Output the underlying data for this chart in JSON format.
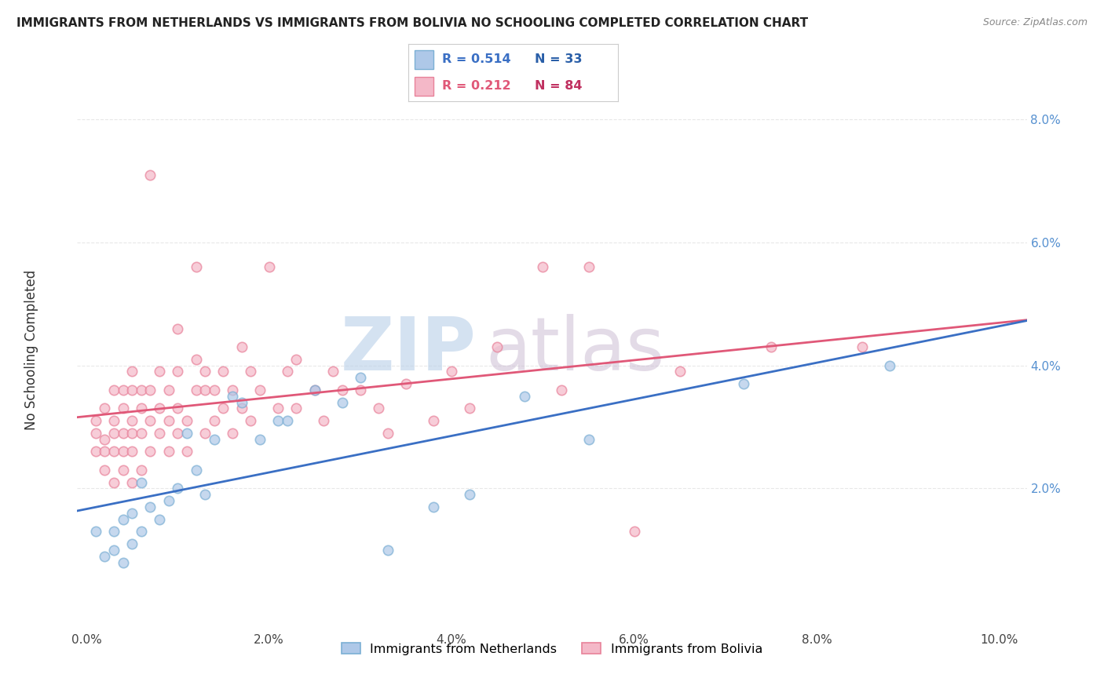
{
  "title": "IMMIGRANTS FROM NETHERLANDS VS IMMIGRANTS FROM BOLIVIA NO SCHOOLING COMPLETED CORRELATION CHART",
  "source": "Source: ZipAtlas.com",
  "ylabel": "No Schooling Completed",
  "xlim": [
    -0.001,
    0.103
  ],
  "ylim": [
    -0.003,
    0.088
  ],
  "netherlands_color": "#aec8e8",
  "bolivia_color": "#f4b8c8",
  "netherlands_edge_color": "#7bafd4",
  "bolivia_edge_color": "#e8829a",
  "netherlands_trend_color": "#3a6fc4",
  "bolivia_trend_color": "#e05878",
  "netherlands_R": 0.514,
  "netherlands_N": 33,
  "bolivia_R": 0.212,
  "bolivia_N": 84,
  "netherlands_label": "Immigrants from Netherlands",
  "bolivia_label": "Immigrants from Bolivia",
  "legend_R_nl_color": "#3a6fc4",
  "legend_N_nl_color": "#2a5fa8",
  "legend_R_bo_color": "#e05878",
  "legend_N_bo_color": "#c03060",
  "watermark_zip": "ZIP",
  "watermark_atlas": "atlas",
  "background_color": "#ffffff",
  "grid_color": "#e8e8e8",
  "x_ticks": [
    0.0,
    0.02,
    0.04,
    0.06,
    0.08,
    0.1
  ],
  "x_tick_labels": [
    "0.0%",
    "2.0%",
    "4.0%",
    "6.0%",
    "8.0%",
    "10.0%"
  ],
  "y_ticks": [
    0.02,
    0.04,
    0.06,
    0.08
  ],
  "y_tick_labels": [
    "2.0%",
    "4.0%",
    "6.0%",
    "8.0%"
  ],
  "netherlands_x": [
    0.001,
    0.002,
    0.003,
    0.003,
    0.004,
    0.004,
    0.005,
    0.005,
    0.006,
    0.006,
    0.007,
    0.008,
    0.009,
    0.01,
    0.011,
    0.012,
    0.013,
    0.014,
    0.016,
    0.017,
    0.019,
    0.021,
    0.022,
    0.025,
    0.028,
    0.03,
    0.033,
    0.038,
    0.042,
    0.048,
    0.055,
    0.072,
    0.088
  ],
  "netherlands_y": [
    0.013,
    0.009,
    0.01,
    0.013,
    0.008,
    0.015,
    0.011,
    0.016,
    0.013,
    0.021,
    0.017,
    0.015,
    0.018,
    0.02,
    0.029,
    0.023,
    0.019,
    0.028,
    0.035,
    0.034,
    0.028,
    0.031,
    0.031,
    0.036,
    0.034,
    0.038,
    0.01,
    0.017,
    0.019,
    0.035,
    0.028,
    0.037,
    0.04
  ],
  "bolivia_x": [
    0.001,
    0.001,
    0.001,
    0.002,
    0.002,
    0.002,
    0.002,
    0.003,
    0.003,
    0.003,
    0.003,
    0.003,
    0.004,
    0.004,
    0.004,
    0.004,
    0.004,
    0.005,
    0.005,
    0.005,
    0.005,
    0.005,
    0.005,
    0.006,
    0.006,
    0.006,
    0.006,
    0.007,
    0.007,
    0.007,
    0.007,
    0.008,
    0.008,
    0.008,
    0.009,
    0.009,
    0.009,
    0.01,
    0.01,
    0.01,
    0.01,
    0.011,
    0.011,
    0.012,
    0.012,
    0.012,
    0.013,
    0.013,
    0.013,
    0.014,
    0.014,
    0.015,
    0.015,
    0.016,
    0.016,
    0.017,
    0.017,
    0.018,
    0.018,
    0.019,
    0.02,
    0.021,
    0.022,
    0.023,
    0.023,
    0.025,
    0.026,
    0.027,
    0.028,
    0.03,
    0.032,
    0.033,
    0.035,
    0.038,
    0.04,
    0.042,
    0.045,
    0.05,
    0.052,
    0.055,
    0.06,
    0.065,
    0.075,
    0.085
  ],
  "bolivia_y": [
    0.026,
    0.029,
    0.031,
    0.023,
    0.026,
    0.028,
    0.033,
    0.021,
    0.026,
    0.029,
    0.031,
    0.036,
    0.023,
    0.026,
    0.029,
    0.033,
    0.036,
    0.021,
    0.026,
    0.029,
    0.031,
    0.036,
    0.039,
    0.023,
    0.029,
    0.033,
    0.036,
    0.026,
    0.031,
    0.036,
    0.071,
    0.029,
    0.033,
    0.039,
    0.026,
    0.031,
    0.036,
    0.029,
    0.033,
    0.039,
    0.046,
    0.026,
    0.031,
    0.036,
    0.041,
    0.056,
    0.029,
    0.036,
    0.039,
    0.031,
    0.036,
    0.033,
    0.039,
    0.029,
    0.036,
    0.033,
    0.043,
    0.031,
    0.039,
    0.036,
    0.056,
    0.033,
    0.039,
    0.033,
    0.041,
    0.036,
    0.031,
    0.039,
    0.036,
    0.036,
    0.033,
    0.029,
    0.037,
    0.031,
    0.039,
    0.033,
    0.043,
    0.056,
    0.036,
    0.056,
    0.013,
    0.039,
    0.043,
    0.043
  ]
}
